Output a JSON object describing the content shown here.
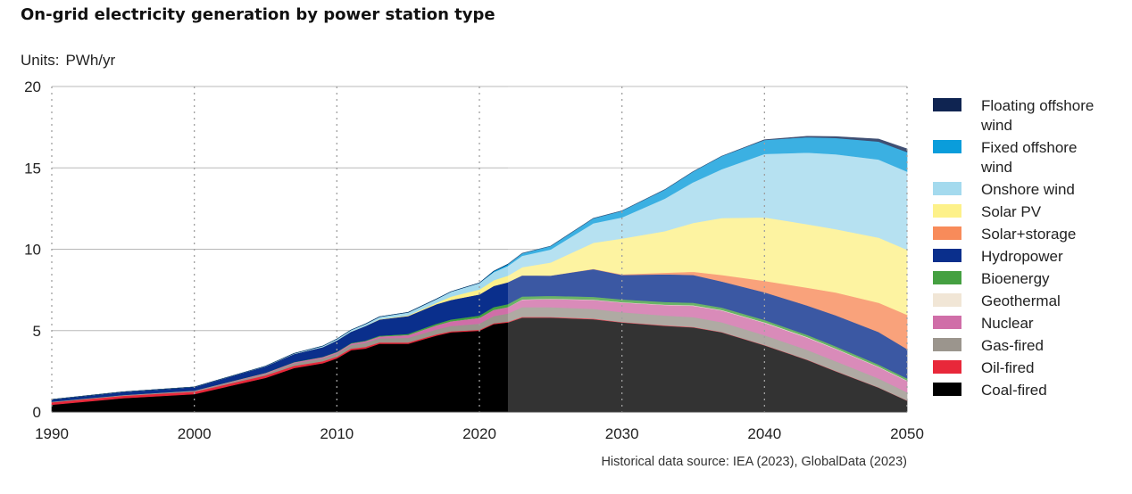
{
  "chart_data": {
    "type": "area",
    "title": "On-grid electricity generation by power station type",
    "units_label": "Units:",
    "units_value": "PWh/yr",
    "xlim": [
      1990,
      2050
    ],
    "ylim": [
      0,
      20
    ],
    "x_ticks": [
      "1990",
      "2000",
      "2010",
      "2020",
      "2030",
      "2040",
      "2050"
    ],
    "y_ticks": [
      "0",
      "5",
      "10",
      "15",
      "20"
    ],
    "historical_end": 2022,
    "source": "Historical data source: IEA (2023), GlobalData (2023)",
    "x": [
      1990,
      1995,
      2000,
      2005,
      2007,
      2009,
      2010,
      2011,
      2012,
      2013,
      2015,
      2017,
      2018,
      2020,
      2021,
      2022,
      2023,
      2025,
      2028,
      2030,
      2033,
      2035,
      2037,
      2040,
      2043,
      2045,
      2048,
      2050
    ],
    "series": [
      {
        "name": "Coal-fired",
        "color": "#000000",
        "values": [
          0.45,
          0.85,
          1.1,
          2.1,
          2.7,
          3.0,
          3.3,
          3.8,
          3.9,
          4.2,
          4.2,
          4.7,
          4.9,
          5.0,
          5.4,
          5.5,
          5.8,
          5.8,
          5.7,
          5.5,
          5.3,
          5.2,
          4.9,
          4.1,
          3.2,
          2.5,
          1.5,
          0.7
        ]
      },
      {
        "name": "Oil-fired",
        "color": "#e8283a",
        "values": [
          0.15,
          0.15,
          0.15,
          0.15,
          0.14,
          0.12,
          0.1,
          0.1,
          0.1,
          0.08,
          0.08,
          0.08,
          0.06,
          0.05,
          0.05,
          0.05,
          0.05,
          0.04,
          0.04,
          0.03,
          0.03,
          0.03,
          0.02,
          0.02,
          0.02,
          0.02,
          0.01,
          0.01
        ]
      },
      {
        "name": "Gas-fired",
        "color": "#9b958d",
        "values": [
          0.03,
          0.03,
          0.04,
          0.1,
          0.15,
          0.18,
          0.2,
          0.22,
          0.25,
          0.25,
          0.28,
          0.3,
          0.33,
          0.38,
          0.45,
          0.5,
          0.6,
          0.6,
          0.6,
          0.6,
          0.6,
          0.6,
          0.6,
          0.6,
          0.6,
          0.6,
          0.55,
          0.5
        ]
      },
      {
        "name": "Nuclear",
        "color": "#d06ea8",
        "values": [
          0.01,
          0.01,
          0.02,
          0.05,
          0.06,
          0.07,
          0.07,
          0.09,
          0.1,
          0.11,
          0.17,
          0.25,
          0.28,
          0.35,
          0.38,
          0.4,
          0.45,
          0.5,
          0.55,
          0.6,
          0.65,
          0.7,
          0.72,
          0.76,
          0.75,
          0.75,
          0.7,
          0.7
        ]
      },
      {
        "name": "Geothermal",
        "color": "#f1e6d6",
        "values": [
          0,
          0,
          0,
          0,
          0,
          0,
          0,
          0,
          0,
          0,
          0,
          0,
          0,
          0,
          0,
          0,
          0.02,
          0.02,
          0.02,
          0.02,
          0.02,
          0.03,
          0.03,
          0.03,
          0.03,
          0.03,
          0.03,
          0.03
        ]
      },
      {
        "name": "Bioenergy",
        "color": "#45a041",
        "values": [
          0,
          0,
          0.01,
          0.01,
          0.02,
          0.02,
          0.03,
          0.03,
          0.04,
          0.05,
          0.07,
          0.1,
          0.12,
          0.15,
          0.17,
          0.18,
          0.18,
          0.18,
          0.17,
          0.17,
          0.16,
          0.16,
          0.15,
          0.15,
          0.14,
          0.14,
          0.13,
          0.13
        ]
      },
      {
        "name": "Hydropower",
        "color": "#0a2f8c",
        "values": [
          0.13,
          0.2,
          0.22,
          0.4,
          0.5,
          0.6,
          0.7,
          0.7,
          0.9,
          1.0,
          1.1,
          1.2,
          1.2,
          1.3,
          1.3,
          1.35,
          1.3,
          1.25,
          1.7,
          1.5,
          1.7,
          1.7,
          1.6,
          1.7,
          1.8,
          1.9,
          2.0,
          1.8
        ]
      },
      {
        "name": "Solar+storage",
        "color": "#f88b5a",
        "values": [
          0,
          0,
          0,
          0,
          0,
          0,
          0,
          0,
          0,
          0,
          0,
          0,
          0,
          0,
          0,
          0,
          0,
          0,
          0.02,
          0.04,
          0.1,
          0.2,
          0.4,
          0.7,
          1.1,
          1.4,
          1.8,
          2.1
        ]
      },
      {
        "name": "Solar PV",
        "color": "#fdf18a",
        "values": [
          0,
          0,
          0,
          0,
          0,
          0,
          0,
          0,
          0,
          0.02,
          0.04,
          0.08,
          0.2,
          0.3,
          0.35,
          0.4,
          0.5,
          0.8,
          1.6,
          2.2,
          2.55,
          3.0,
          3.5,
          3.9,
          3.9,
          3.9,
          4.0,
          4.0
        ]
      },
      {
        "name": "Onshore wind",
        "color": "#a4daee",
        "values": [
          0,
          0,
          0,
          0.01,
          0.03,
          0.06,
          0.08,
          0.1,
          0.12,
          0.14,
          0.18,
          0.24,
          0.3,
          0.4,
          0.5,
          0.6,
          0.7,
          0.8,
          1.2,
          1.3,
          2.0,
          2.5,
          3.0,
          3.9,
          4.4,
          4.6,
          4.8,
          4.8
        ]
      },
      {
        "name": "Fixed offshore wind",
        "color": "#0a9ddb",
        "values": [
          0,
          0,
          0,
          0,
          0,
          0,
          0,
          0,
          0,
          0,
          0,
          0,
          0,
          0,
          0.05,
          0.1,
          0.15,
          0.2,
          0.3,
          0.4,
          0.55,
          0.65,
          0.8,
          0.85,
          0.95,
          1.0,
          1.1,
          1.2
        ]
      },
      {
        "name": "Floating offshore wind",
        "color": "#0f2451",
        "values": [
          0,
          0,
          0,
          0,
          0,
          0,
          0,
          0,
          0,
          0,
          0,
          0,
          0,
          0,
          0,
          0,
          0,
          0,
          0,
          0,
          0,
          0,
          0,
          0.02,
          0.05,
          0.08,
          0.15,
          0.2
        ]
      }
    ],
    "legend": [
      {
        "label": "Floating offshore wind",
        "color": "#0f2451"
      },
      {
        "label": "Fixed offshore wind",
        "color": "#0a9ddb"
      },
      {
        "label": "Onshore wind",
        "color": "#a4daee"
      },
      {
        "label": "Solar PV",
        "color": "#fdf18a"
      },
      {
        "label": "Solar+storage",
        "color": "#f88b5a"
      },
      {
        "label": "Hydropower",
        "color": "#0a2f8c"
      },
      {
        "label": "Bioenergy",
        "color": "#45a041"
      },
      {
        "label": "Geothermal",
        "color": "#f1e6d6"
      },
      {
        "label": "Nuclear",
        "color": "#d06ea8"
      },
      {
        "label": "Gas-fired",
        "color": "#9b958d"
      },
      {
        "label": "Oil-fired",
        "color": "#e8283a"
      },
      {
        "label": "Coal-fired",
        "color": "#000000"
      }
    ]
  }
}
